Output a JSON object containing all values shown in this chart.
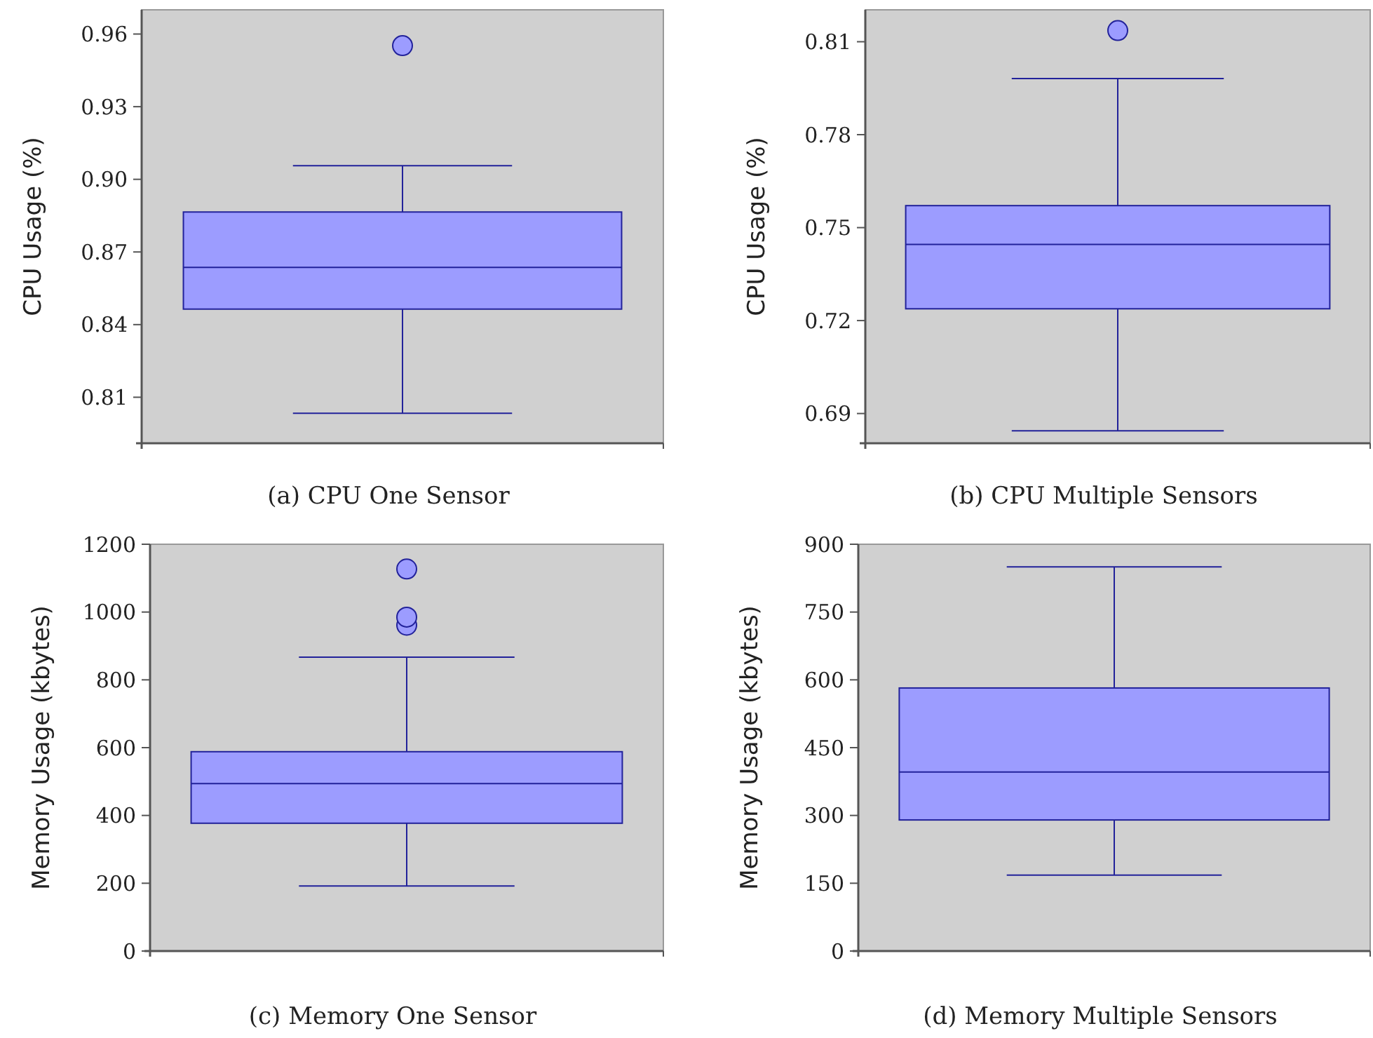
{
  "chart_data": [
    {
      "type": "box",
      "title": "(a) CPU One Sensor",
      "ylabel": "CPU Usage (%)",
      "categories": [
        null
      ],
      "tick_labels": "y",
      "ylim": [
        0.791,
        0.97
      ],
      "yticks": [
        0.81,
        0.84,
        0.87,
        {
          "value": 0.9,
          "label": "0.90"
        },
        0.93,
        0.96
      ],
      "series": [
        {
          "color": "#9c9cff",
          "boxes": [
            {
              "low": 0.8034,
              "q1": 0.8464,
              "median": 0.8636,
              "q3": 0.8865,
              "high": 0.9056,
              "outliers": [
                0.9552
              ]
            }
          ]
        }
      ]
    },
    {
      "type": "box",
      "title": "(b) CPU Multiple Sensors",
      "ylabel": "CPU Usage (%)",
      "categories": [
        null
      ],
      "tick_labels": "y",
      "ylim": [
        0.6804,
        0.8203
      ],
      "yticks": [
        0.69,
        0.72,
        0.75,
        0.78,
        0.81
      ],
      "series": [
        {
          "color": "#9c9cff",
          "boxes": [
            {
              "low": 0.6844,
              "q1": 0.7238,
              "median": 0.7446,
              "q3": 0.7571,
              "high": 0.7981,
              "outliers": [
                0.8136
              ]
            }
          ]
        }
      ]
    },
    {
      "type": "box",
      "title": "(c) Memory One Sensor",
      "ylabel": "Memory Usage (kbytes)",
      "categories": [
        null
      ],
      "tick_labels": "y",
      "ylim": [
        0,
        1200
      ],
      "yticks": [
        0,
        200,
        400,
        600,
        800,
        1000,
        1200
      ],
      "series": [
        {
          "color": "#9c9cff",
          "boxes": [
            {
              "low": 192,
              "q1": 377,
              "median": 494,
              "q3": 588,
              "high": 867,
              "outliers": [
                961,
                985,
                1127
              ]
            }
          ]
        }
      ]
    },
    {
      "type": "box",
      "title": "(d) Memory Multiple Sensors",
      "ylabel": "Memory Usage (kbytes)",
      "categories": [
        null
      ],
      "tick_labels": "y",
      "ylim": [
        0,
        900
      ],
      "yticks": [
        0,
        150,
        300,
        450,
        600,
        750,
        900
      ],
      "series": [
        {
          "color": "#9c9cff",
          "boxes": [
            {
              "low": 168,
              "q1": 290,
              "median": 396,
              "q3": 582,
              "high": 850
            }
          ]
        }
      ]
    }
  ]
}
